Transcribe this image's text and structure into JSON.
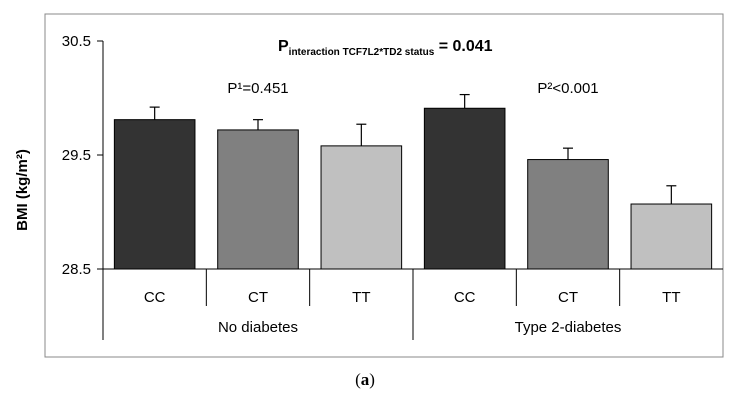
{
  "chart_data": {
    "type": "bar",
    "title": {
      "prefix": "P",
      "subscript": "interaction TCF7L2*TD2 status",
      "suffix": " = 0.041"
    },
    "ylabel": "BMI (kg/m²)",
    "ylim": [
      28.5,
      30.5
    ],
    "yticks": [
      "28.5",
      "29.5",
      "30.5"
    ],
    "ytick_values": [
      28.5,
      29.5,
      30.5
    ],
    "groups": [
      {
        "name": "No diabetes",
        "annotation": "P¹=0.451",
        "bars": [
          {
            "category": "CC",
            "value": 29.81,
            "error": 0.11,
            "color": "#333333"
          },
          {
            "category": "CT",
            "value": 29.72,
            "error": 0.09,
            "color": "#808080"
          },
          {
            "category": "TT",
            "value": 29.58,
            "error": 0.19,
            "color": "#c0c0c0"
          }
        ]
      },
      {
        "name": "Type 2-diabetes",
        "annotation": "P²<0.001",
        "bars": [
          {
            "category": "CC",
            "value": 29.91,
            "error": 0.12,
            "color": "#333333"
          },
          {
            "category": "CT",
            "value": 29.46,
            "error": 0.1,
            "color": "#808080"
          },
          {
            "category": "TT",
            "value": 29.07,
            "error": 0.16,
            "color": "#c0c0c0"
          }
        ]
      }
    ],
    "grid": false
  },
  "caption": {
    "open": "(",
    "letter": "a",
    "close": ")"
  }
}
